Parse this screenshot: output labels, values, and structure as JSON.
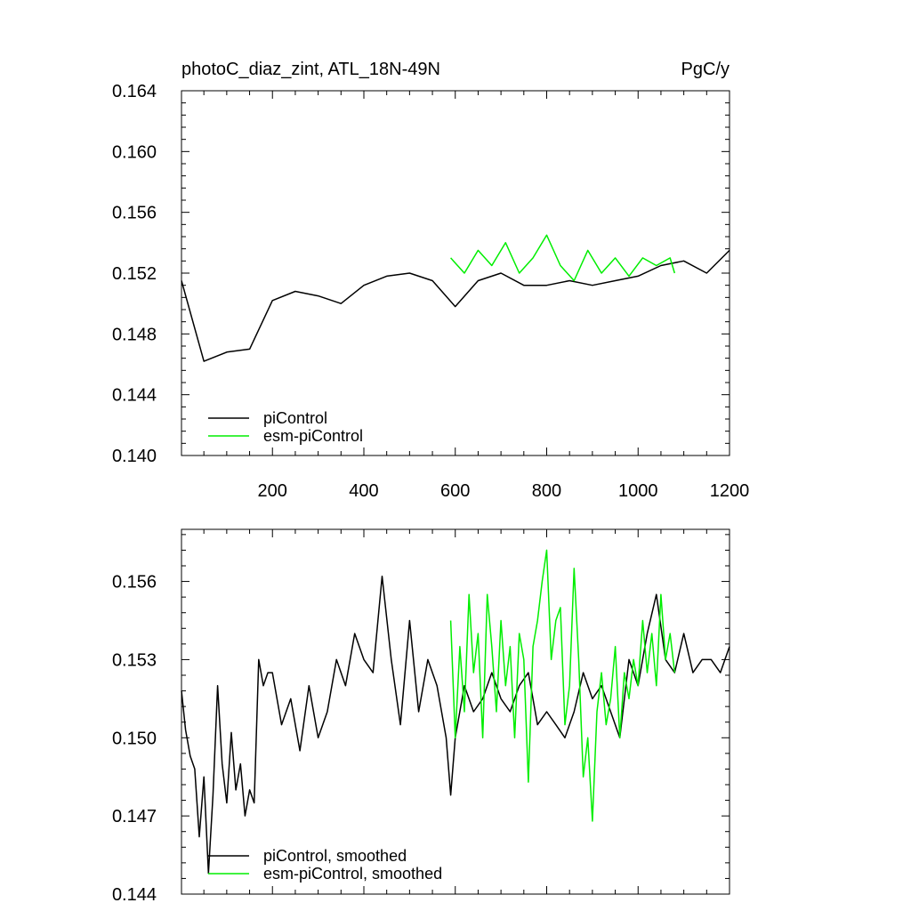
{
  "chart_data": [
    {
      "type": "line",
      "title": "photoC_diaz_zint, ATL_18N-49N",
      "units": "PgC/y",
      "xlabel": "",
      "ylabel": "",
      "xlim": [
        1,
        1200
      ],
      "ylim": [
        0.14,
        0.164
      ],
      "x_ticks": [
        200,
        400,
        600,
        800,
        1000,
        1200
      ],
      "y_ticks": [
        "0.140",
        "0.144",
        "0.148",
        "0.152",
        "0.156",
        "0.160",
        "0.164"
      ],
      "legend_position": "bottom-left",
      "series": [
        {
          "name": "piControl",
          "color": "#000000",
          "x": [
            1,
            50,
            100,
            150,
            200,
            250,
            300,
            350,
            400,
            450,
            500,
            550,
            600,
            650,
            700,
            750,
            800,
            850,
            900,
            950,
            1000,
            1050,
            1100,
            1150,
            1200
          ],
          "values": [
            0.1515,
            0.1462,
            0.1468,
            0.147,
            0.1502,
            0.1508,
            0.1505,
            0.15,
            0.1512,
            0.1518,
            0.152,
            0.1515,
            0.1498,
            0.1515,
            0.152,
            0.1512,
            0.1512,
            0.1515,
            0.1512,
            0.1515,
            0.1518,
            0.1525,
            0.1528,
            0.152,
            0.1535
          ]
        },
        {
          "name": "esm-piControl",
          "color": "#00ee00",
          "x": [
            590,
            620,
            650,
            680,
            710,
            740,
            770,
            800,
            830,
            860,
            890,
            920,
            950,
            980,
            1010,
            1040,
            1070,
            1080
          ],
          "values": [
            0.153,
            0.152,
            0.1535,
            0.1525,
            0.154,
            0.152,
            0.153,
            0.1545,
            0.1525,
            0.1515,
            0.1535,
            0.152,
            0.153,
            0.1518,
            0.153,
            0.1525,
            0.153,
            0.152
          ]
        }
      ]
    },
    {
      "type": "line",
      "title": "",
      "xlabel": "",
      "ylabel": "",
      "xlim": [
        1,
        1200
      ],
      "ylim": [
        0.144,
        0.158
      ],
      "y_ticks": [
        "0.144",
        "0.147",
        "0.150",
        "0.153",
        "0.156"
      ],
      "legend_position": "bottom-left",
      "series": [
        {
          "name": "piControl, smoothed",
          "color": "#000000",
          "x": [
            1,
            10,
            20,
            30,
            40,
            50,
            60,
            70,
            80,
            90,
            100,
            110,
            120,
            130,
            140,
            150,
            160,
            170,
            180,
            190,
            200,
            220,
            240,
            260,
            280,
            300,
            320,
            340,
            360,
            380,
            400,
            420,
            440,
            460,
            480,
            500,
            520,
            540,
            560,
            580,
            590,
            600,
            620,
            640,
            660,
            680,
            700,
            720,
            740,
            760,
            780,
            800,
            820,
            840,
            860,
            880,
            900,
            920,
            940,
            960,
            980,
            1000,
            1020,
            1040,
            1060,
            1080,
            1100,
            1120,
            1140,
            1160,
            1180,
            1200
          ],
          "values": [
            0.1518,
            0.1503,
            0.1493,
            0.1488,
            0.1462,
            0.1485,
            0.1448,
            0.1478,
            0.152,
            0.149,
            0.1475,
            0.1502,
            0.148,
            0.149,
            0.147,
            0.148,
            0.1475,
            0.153,
            0.152,
            0.1525,
            0.1525,
            0.1505,
            0.1515,
            0.1495,
            0.152,
            0.15,
            0.151,
            0.153,
            0.152,
            0.154,
            0.153,
            0.1525,
            0.1562,
            0.153,
            0.1505,
            0.1545,
            0.151,
            0.153,
            0.152,
            0.15,
            0.1478,
            0.15,
            0.152,
            0.151,
            0.1515,
            0.1525,
            0.1515,
            0.151,
            0.152,
            0.1525,
            0.1505,
            0.151,
            0.1505,
            0.15,
            0.151,
            0.1525,
            0.1515,
            0.152,
            0.151,
            0.15,
            0.153,
            0.152,
            0.154,
            0.1555,
            0.153,
            0.1525,
            0.154,
            0.1525,
            0.153,
            0.153,
            0.1525,
            0.1535
          ]
        },
        {
          "name": "esm-piControl, smoothed",
          "color": "#00ee00",
          "x": [
            590,
            600,
            610,
            620,
            630,
            640,
            650,
            660,
            670,
            680,
            690,
            700,
            710,
            720,
            730,
            740,
            750,
            760,
            770,
            780,
            790,
            800,
            810,
            820,
            830,
            840,
            850,
            860,
            870,
            880,
            890,
            900,
            910,
            920,
            930,
            940,
            950,
            960,
            970,
            980,
            990,
            1000,
            1010,
            1020,
            1030,
            1040,
            1050,
            1060,
            1070,
            1080
          ],
          "values": [
            0.1545,
            0.15,
            0.1535,
            0.151,
            0.1555,
            0.1525,
            0.154,
            0.15,
            0.1555,
            0.1535,
            0.151,
            0.1545,
            0.152,
            0.1535,
            0.15,
            0.154,
            0.153,
            0.1483,
            0.1535,
            0.1545,
            0.156,
            0.1572,
            0.153,
            0.1545,
            0.155,
            0.1505,
            0.152,
            0.1565,
            0.153,
            0.1485,
            0.15,
            0.1468,
            0.151,
            0.1525,
            0.1505,
            0.1515,
            0.1535,
            0.15,
            0.1525,
            0.1515,
            0.153,
            0.152,
            0.1545,
            0.1525,
            0.154,
            0.152,
            0.1555,
            0.153,
            0.154,
            0.1525
          ]
        }
      ]
    }
  ]
}
